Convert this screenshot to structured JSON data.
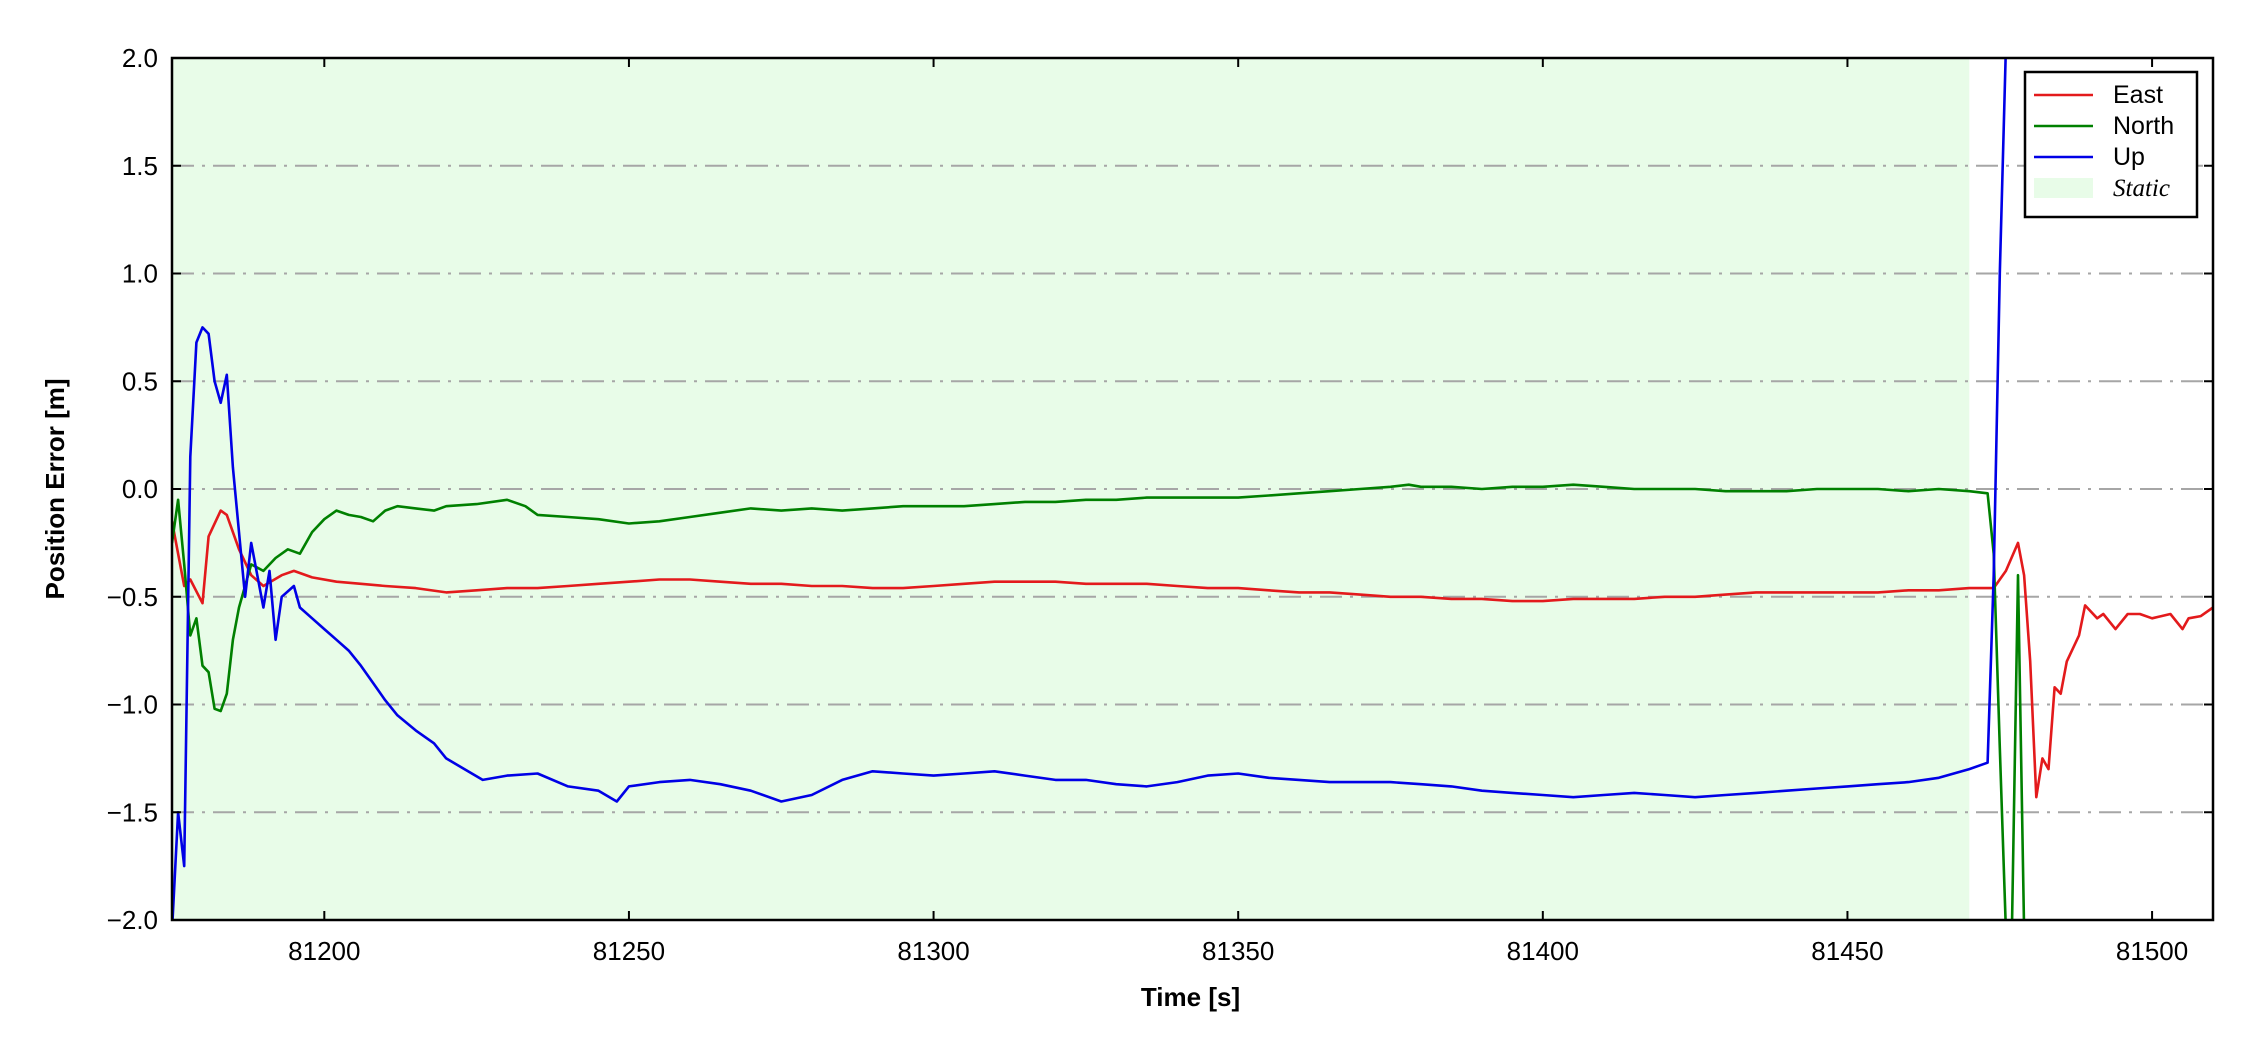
{
  "chart_data": {
    "type": "line",
    "xlabel": "Time [s]",
    "ylabel": "Position Error [m]",
    "xlim": [
      81175,
      81510
    ],
    "ylim": [
      -2.0,
      2.0
    ],
    "xticks": [
      81200,
      81250,
      81300,
      81350,
      81400,
      81450,
      81500
    ],
    "xtick_labels": [
      "81200",
      "81250",
      "81300",
      "81350",
      "81400",
      "81450",
      "81500"
    ],
    "yticks": [
      -2.0,
      -1.5,
      -1.0,
      -0.5,
      0.0,
      0.5,
      1.0,
      1.5,
      2.0
    ],
    "ytick_labels": [
      "−2.0",
      "−1.5",
      "−1.0",
      "−0.5",
      "0.0",
      "0.5",
      "1.0",
      "1.5",
      "2.0"
    ],
    "grid": "horizontal dash-dot",
    "legend_position": "top-right",
    "static_region": {
      "label": "Static",
      "x_start": 81175,
      "x_end": 81470,
      "color": "#e8fce8"
    },
    "series": [
      {
        "name": "East",
        "color": "#e31a1c",
        "points": [
          [
            81175,
            -0.15
          ],
          [
            81177,
            -0.45
          ],
          [
            81178,
            -0.42
          ],
          [
            81180,
            -0.53
          ],
          [
            81181,
            -0.22
          ],
          [
            81183,
            -0.1
          ],
          [
            81184,
            -0.12
          ],
          [
            81186,
            -0.28
          ],
          [
            81188,
            -0.4
          ],
          [
            81190,
            -0.45
          ],
          [
            81193,
            -0.4
          ],
          [
            81195,
            -0.38
          ],
          [
            81198,
            -0.41
          ],
          [
            81202,
            -0.43
          ],
          [
            81206,
            -0.44
          ],
          [
            81210,
            -0.45
          ],
          [
            81215,
            -0.46
          ],
          [
            81220,
            -0.48
          ],
          [
            81225,
            -0.47
          ],
          [
            81230,
            -0.46
          ],
          [
            81235,
            -0.46
          ],
          [
            81240,
            -0.45
          ],
          [
            81245,
            -0.44
          ],
          [
            81250,
            -0.43
          ],
          [
            81255,
            -0.42
          ],
          [
            81260,
            -0.42
          ],
          [
            81265,
            -0.43
          ],
          [
            81270,
            -0.44
          ],
          [
            81275,
            -0.44
          ],
          [
            81280,
            -0.45
          ],
          [
            81285,
            -0.45
          ],
          [
            81290,
            -0.46
          ],
          [
            81295,
            -0.46
          ],
          [
            81300,
            -0.45
          ],
          [
            81305,
            -0.44
          ],
          [
            81310,
            -0.43
          ],
          [
            81315,
            -0.43
          ],
          [
            81320,
            -0.43
          ],
          [
            81325,
            -0.44
          ],
          [
            81330,
            -0.44
          ],
          [
            81335,
            -0.44
          ],
          [
            81340,
            -0.45
          ],
          [
            81345,
            -0.46
          ],
          [
            81350,
            -0.46
          ],
          [
            81355,
            -0.47
          ],
          [
            81360,
            -0.48
          ],
          [
            81365,
            -0.48
          ],
          [
            81370,
            -0.49
          ],
          [
            81375,
            -0.5
          ],
          [
            81380,
            -0.5
          ],
          [
            81385,
            -0.51
          ],
          [
            81390,
            -0.51
          ],
          [
            81395,
            -0.52
          ],
          [
            81400,
            -0.52
          ],
          [
            81405,
            -0.51
          ],
          [
            81410,
            -0.51
          ],
          [
            81415,
            -0.51
          ],
          [
            81420,
            -0.5
          ],
          [
            81425,
            -0.5
          ],
          [
            81430,
            -0.49
          ],
          [
            81435,
            -0.48
          ],
          [
            81440,
            -0.48
          ],
          [
            81445,
            -0.48
          ],
          [
            81450,
            -0.48
          ],
          [
            81455,
            -0.48
          ],
          [
            81460,
            -0.47
          ],
          [
            81465,
            -0.47
          ],
          [
            81470,
            -0.46
          ],
          [
            81474,
            -0.46
          ],
          [
            81476,
            -0.38
          ],
          [
            81478,
            -0.25
          ],
          [
            81479,
            -0.4
          ],
          [
            81480,
            -0.8
          ],
          [
            81481,
            -1.43
          ],
          [
            81482,
            -1.25
          ],
          [
            81483,
            -1.3
          ],
          [
            81484,
            -0.92
          ],
          [
            81485,
            -0.95
          ],
          [
            81486,
            -0.8
          ],
          [
            81488,
            -0.68
          ],
          [
            81489,
            -0.54
          ],
          [
            81491,
            -0.6
          ],
          [
            81492,
            -0.58
          ],
          [
            81494,
            -0.65
          ],
          [
            81496,
            -0.58
          ],
          [
            81498,
            -0.58
          ],
          [
            81500,
            -0.6
          ],
          [
            81503,
            -0.58
          ],
          [
            81505,
            -0.65
          ],
          [
            81506,
            -0.6
          ],
          [
            81508,
            -0.59
          ],
          [
            81510,
            -0.55
          ]
        ]
      },
      {
        "name": "North",
        "color": "#008000",
        "points": [
          [
            81175,
            -0.25
          ],
          [
            81176,
            -0.05
          ],
          [
            81177,
            -0.35
          ],
          [
            81178,
            -0.68
          ],
          [
            81179,
            -0.6
          ],
          [
            81180,
            -0.82
          ],
          [
            81181,
            -0.85
          ],
          [
            81182,
            -1.02
          ],
          [
            81183,
            -1.03
          ],
          [
            81184,
            -0.95
          ],
          [
            81185,
            -0.7
          ],
          [
            81186,
            -0.55
          ],
          [
            81188,
            -0.35
          ],
          [
            81190,
            -0.38
          ],
          [
            81192,
            -0.32
          ],
          [
            81194,
            -0.28
          ],
          [
            81196,
            -0.3
          ],
          [
            81198,
            -0.2
          ],
          [
            81200,
            -0.14
          ],
          [
            81202,
            -0.1
          ],
          [
            81204,
            -0.12
          ],
          [
            81206,
            -0.13
          ],
          [
            81208,
            -0.15
          ],
          [
            81210,
            -0.1
          ],
          [
            81212,
            -0.08
          ],
          [
            81215,
            -0.09
          ],
          [
            81218,
            -0.1
          ],
          [
            81220,
            -0.08
          ],
          [
            81225,
            -0.07
          ],
          [
            81230,
            -0.05
          ],
          [
            81233,
            -0.08
          ],
          [
            81235,
            -0.12
          ],
          [
            81240,
            -0.13
          ],
          [
            81245,
            -0.14
          ],
          [
            81250,
            -0.16
          ],
          [
            81255,
            -0.15
          ],
          [
            81260,
            -0.13
          ],
          [
            81265,
            -0.11
          ],
          [
            81270,
            -0.09
          ],
          [
            81275,
            -0.1
          ],
          [
            81280,
            -0.09
          ],
          [
            81285,
            -0.1
          ],
          [
            81290,
            -0.09
          ],
          [
            81295,
            -0.08
          ],
          [
            81300,
            -0.08
          ],
          [
            81305,
            -0.08
          ],
          [
            81310,
            -0.07
          ],
          [
            81315,
            -0.06
          ],
          [
            81320,
            -0.06
          ],
          [
            81325,
            -0.05
          ],
          [
            81330,
            -0.05
          ],
          [
            81335,
            -0.04
          ],
          [
            81340,
            -0.04
          ],
          [
            81345,
            -0.04
          ],
          [
            81350,
            -0.04
          ],
          [
            81355,
            -0.03
          ],
          [
            81360,
            -0.02
          ],
          [
            81365,
            -0.01
          ],
          [
            81370,
            0.0
          ],
          [
            81375,
            0.01
          ],
          [
            81378,
            0.02
          ],
          [
            81380,
            0.01
          ],
          [
            81385,
            0.01
          ],
          [
            81390,
            0.0
          ],
          [
            81395,
            0.01
          ],
          [
            81400,
            0.01
          ],
          [
            81405,
            0.02
          ],
          [
            81410,
            0.01
          ],
          [
            81415,
            0.0
          ],
          [
            81420,
            0.0
          ],
          [
            81425,
            0.0
          ],
          [
            81430,
            -0.01
          ],
          [
            81435,
            -0.01
          ],
          [
            81440,
            -0.01
          ],
          [
            81445,
            0.0
          ],
          [
            81450,
            0.0
          ],
          [
            81455,
            0.0
          ],
          [
            81460,
            -0.01
          ],
          [
            81465,
            0.0
          ],
          [
            81470,
            -0.01
          ],
          [
            81473,
            -0.02
          ],
          [
            81474,
            -0.3
          ],
          [
            81475,
            -1.2
          ],
          [
            81476,
            -2.05
          ],
          [
            81477,
            -2.05
          ],
          [
            81478,
            -0.4
          ],
          [
            81479,
            -2.05
          ]
        ]
      },
      {
        "name": "Up",
        "color": "#0000e6",
        "points": [
          [
            81175,
            -2.05
          ],
          [
            81176,
            -1.5
          ],
          [
            81177,
            -1.75
          ],
          [
            81178,
            0.15
          ],
          [
            81179,
            0.68
          ],
          [
            81180,
            0.75
          ],
          [
            81181,
            0.72
          ],
          [
            81182,
            0.5
          ],
          [
            81183,
            0.4
          ],
          [
            81184,
            0.53
          ],
          [
            81185,
            0.1
          ],
          [
            81186,
            -0.2
          ],
          [
            81187,
            -0.5
          ],
          [
            81188,
            -0.25
          ],
          [
            81190,
            -0.55
          ],
          [
            81191,
            -0.38
          ],
          [
            81192,
            -0.7
          ],
          [
            81193,
            -0.5
          ],
          [
            81195,
            -0.45
          ],
          [
            81196,
            -0.55
          ],
          [
            81198,
            -0.6
          ],
          [
            81200,
            -0.65
          ],
          [
            81202,
            -0.7
          ],
          [
            81204,
            -0.75
          ],
          [
            81206,
            -0.82
          ],
          [
            81208,
            -0.9
          ],
          [
            81210,
            -0.98
          ],
          [
            81212,
            -1.05
          ],
          [
            81215,
            -1.12
          ],
          [
            81218,
            -1.18
          ],
          [
            81220,
            -1.25
          ],
          [
            81223,
            -1.3
          ],
          [
            81226,
            -1.35
          ],
          [
            81230,
            -1.33
          ],
          [
            81235,
            -1.32
          ],
          [
            81240,
            -1.38
          ],
          [
            81245,
            -1.4
          ],
          [
            81248,
            -1.45
          ],
          [
            81250,
            -1.38
          ],
          [
            81255,
            -1.36
          ],
          [
            81260,
            -1.35
          ],
          [
            81265,
            -1.37
          ],
          [
            81270,
            -1.4
          ],
          [
            81275,
            -1.45
          ],
          [
            81280,
            -1.42
          ],
          [
            81285,
            -1.35
          ],
          [
            81290,
            -1.31
          ],
          [
            81295,
            -1.32
          ],
          [
            81300,
            -1.33
          ],
          [
            81305,
            -1.32
          ],
          [
            81310,
            -1.31
          ],
          [
            81315,
            -1.33
          ],
          [
            81320,
            -1.35
          ],
          [
            81325,
            -1.35
          ],
          [
            81330,
            -1.37
          ],
          [
            81335,
            -1.38
          ],
          [
            81340,
            -1.36
          ],
          [
            81345,
            -1.33
          ],
          [
            81350,
            -1.32
          ],
          [
            81355,
            -1.34
          ],
          [
            81360,
            -1.35
          ],
          [
            81365,
            -1.36
          ],
          [
            81370,
            -1.36
          ],
          [
            81375,
            -1.36
          ],
          [
            81380,
            -1.37
          ],
          [
            81385,
            -1.38
          ],
          [
            81390,
            -1.4
          ],
          [
            81395,
            -1.41
          ],
          [
            81400,
            -1.42
          ],
          [
            81405,
            -1.43
          ],
          [
            81410,
            -1.42
          ],
          [
            81415,
            -1.41
          ],
          [
            81420,
            -1.42
          ],
          [
            81425,
            -1.43
          ],
          [
            81430,
            -1.42
          ],
          [
            81435,
            -1.41
          ],
          [
            81440,
            -1.4
          ],
          [
            81445,
            -1.39
          ],
          [
            81450,
            -1.38
          ],
          [
            81455,
            -1.37
          ],
          [
            81460,
            -1.36
          ],
          [
            81465,
            -1.34
          ],
          [
            81470,
            -1.3
          ],
          [
            81472,
            -1.28
          ],
          [
            81473,
            -1.27
          ],
          [
            81474,
            -0.4
          ],
          [
            81475,
            1.0
          ],
          [
            81476,
            2.05
          ]
        ]
      }
    ]
  }
}
